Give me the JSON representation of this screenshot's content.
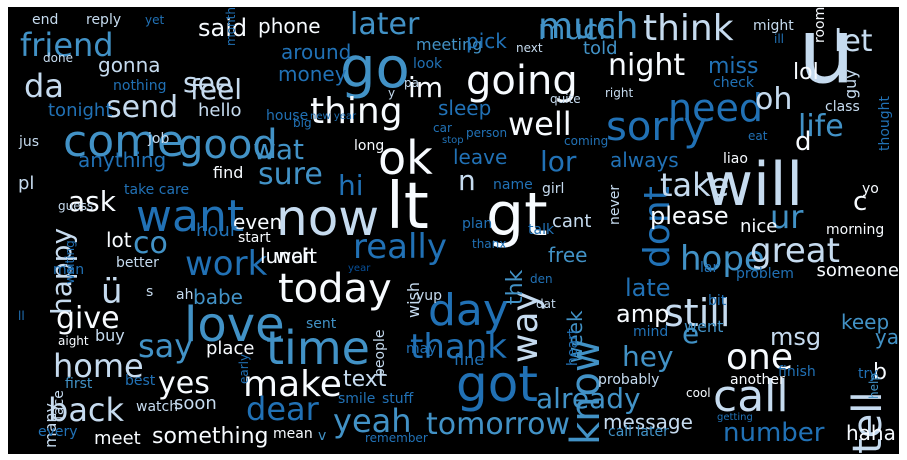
{
  "palette": {
    "background": "#000000",
    "frame": "#ffffff",
    "white": "#f7fbff",
    "pale_blue": "#c6dbef",
    "light_blue": "#9ecae1",
    "mid_blue": "#6baed6",
    "blue": "#4292c6",
    "deep_blue": "#2171b5",
    "navy": "#08519c",
    "dark_navy": "#08306b"
  },
  "words": [
    {
      "text": "lt",
      "color": "#f7fbff"
    },
    {
      "text": "ü",
      "color": "#c6dbef"
    },
    {
      "text": "gt",
      "color": "#f7fbff"
    },
    {
      "text": "u",
      "color": "#c6dbef"
    },
    {
      "text": "will",
      "color": "#c6dbef"
    },
    {
      "text": "now",
      "color": "#c6dbef"
    },
    {
      "text": "ok",
      "color": "#f7fbff"
    },
    {
      "text": "go",
      "color": "#4292c6"
    },
    {
      "text": "got",
      "color": "#2171b5"
    },
    {
      "text": "time",
      "color": "#4292c6"
    },
    {
      "text": "call",
      "color": "#c6dbef"
    },
    {
      "text": "know",
      "color": "#4292c6"
    },
    {
      "text": "going",
      "color": "#f7fbff"
    },
    {
      "text": "come",
      "color": "#4292c6"
    },
    {
      "text": "love",
      "color": "#4292c6"
    },
    {
      "text": "good",
      "color": "#4292c6"
    },
    {
      "text": "day",
      "color": "#2171b5"
    },
    {
      "text": "sorry",
      "color": "#2171b5"
    },
    {
      "text": "want",
      "color": "#2171b5"
    },
    {
      "text": "much",
      "color": "#4292c6"
    },
    {
      "text": "need",
      "color": "#2171b5"
    },
    {
      "text": "think",
      "color": "#c6dbef"
    },
    {
      "text": "still",
      "color": "#c6dbef"
    },
    {
      "text": "today",
      "color": "#f7fbff"
    },
    {
      "text": "make",
      "color": "#f7fbff"
    },
    {
      "text": "tell",
      "color": "#c6dbef"
    },
    {
      "text": "one",
      "color": "#f7fbff"
    },
    {
      "text": "dont",
      "color": "#2171b5"
    },
    {
      "text": "ur",
      "color": "#4292c6"
    },
    {
      "text": "home",
      "color": "#c6dbef"
    },
    {
      "text": "back",
      "color": "#c6dbef"
    },
    {
      "text": "thing",
      "color": "#f7fbff"
    },
    {
      "text": "really",
      "color": "#2171b5"
    },
    {
      "text": "work",
      "color": "#2171b5"
    },
    {
      "text": "way",
      "color": "#c6dbef"
    },
    {
      "text": "yeah",
      "color": "#4292c6"
    },
    {
      "text": "tomorrow",
      "color": "#4292c6"
    },
    {
      "text": "dear",
      "color": "#2171b5"
    },
    {
      "text": "say",
      "color": "#4292c6"
    },
    {
      "text": "hope",
      "color": "#4292c6"
    },
    {
      "text": "take",
      "color": "#c6dbef"
    },
    {
      "text": "great",
      "color": "#c6dbef"
    },
    {
      "text": "thank",
      "color": "#2171b5"
    },
    {
      "text": "already",
      "color": "#4292c6"
    },
    {
      "text": "hey",
      "color": "#4292c6"
    },
    {
      "text": "well",
      "color": "#f7fbff"
    },
    {
      "text": "happy",
      "color": "#c6dbef"
    },
    {
      "text": "give",
      "color": "#f7fbff"
    },
    {
      "text": "night",
      "color": "#f7fbff"
    },
    {
      "text": "sure",
      "color": "#4292c6"
    },
    {
      "text": "life",
      "color": "#4292c6"
    },
    {
      "text": "da",
      "color": "#c6dbef"
    },
    {
      "text": "see",
      "color": "#c6dbef"
    },
    {
      "text": "feel",
      "color": "#c6dbef"
    },
    {
      "text": "send",
      "color": "#c6dbef"
    },
    {
      "text": "friend",
      "color": "#4292c6"
    },
    {
      "text": "later",
      "color": "#4292c6"
    },
    {
      "text": "said",
      "color": "#f7fbff"
    },
    {
      "text": "im",
      "color": "#f7fbff"
    },
    {
      "text": "let",
      "color": "#c6dbef"
    },
    {
      "text": "oh",
      "color": "#c6dbef"
    },
    {
      "text": "yes",
      "color": "#f7fbff"
    },
    {
      "text": "please",
      "color": "#f7fbff"
    },
    {
      "text": "wat",
      "color": "#4292c6"
    },
    {
      "text": "lor",
      "color": "#2171b5"
    },
    {
      "text": "hi",
      "color": "#2171b5"
    },
    {
      "text": "n",
      "color": "#c6dbef"
    },
    {
      "text": "ask",
      "color": "#f7fbff"
    },
    {
      "text": "co",
      "color": "#4292c6"
    },
    {
      "text": "late",
      "color": "#2171b5"
    },
    {
      "text": "amp",
      "color": "#f7fbff"
    },
    {
      "text": "e",
      "color": "#4292c6"
    },
    {
      "text": "msg",
      "color": "#c6dbef"
    },
    {
      "text": "number",
      "color": "#2171b5"
    },
    {
      "text": "d",
      "color": "#f7fbff"
    },
    {
      "text": "c",
      "color": "#f7fbff"
    },
    {
      "text": "text",
      "color": "#c6dbef"
    },
    {
      "text": "something",
      "color": "#f7fbff"
    },
    {
      "text": "message",
      "color": "#c6dbef"
    },
    {
      "text": "haha",
      "color": "#f7fbff"
    },
    {
      "text": "keep",
      "color": "#4292c6"
    },
    {
      "text": "b",
      "color": "#f7fbff"
    },
    {
      "text": "ya",
      "color": "#4292c6"
    },
    {
      "text": "phone",
      "color": "#f7fbff"
    },
    {
      "text": "much",
      "color": "#4292c6"
    },
    {
      "text": "meeting",
      "color": "#4292c6"
    },
    {
      "text": "told",
      "color": "#4292c6"
    },
    {
      "text": "miss",
      "color": "#2171b5"
    },
    {
      "text": "lol",
      "color": "#f7fbff"
    },
    {
      "text": "guy",
      "color": "#c6dbef"
    },
    {
      "text": "sleep",
      "color": "#2171b5"
    },
    {
      "text": "leave",
      "color": "#2171b5"
    },
    {
      "text": "always",
      "color": "#2171b5"
    },
    {
      "text": "even",
      "color": "#f7fbff"
    },
    {
      "text": "lunch",
      "color": "#f7fbff"
    },
    {
      "text": "wait",
      "color": "#f7fbff"
    },
    {
      "text": "lot",
      "color": "#f7fbff"
    },
    {
      "text": "free",
      "color": "#4292c6"
    },
    {
      "text": "cant",
      "color": "#c6dbef"
    },
    {
      "text": "thk",
      "color": "#4292c6"
    },
    {
      "text": "week",
      "color": "#4292c6"
    },
    {
      "text": "babe",
      "color": "#4292c6"
    },
    {
      "text": "place",
      "color": "#f7fbff"
    },
    {
      "text": "soon",
      "color": "#c6dbef"
    },
    {
      "text": "meet",
      "color": "#f7fbff"
    },
    {
      "text": "buy",
      "color": "#c6dbef"
    },
    {
      "text": "pick",
      "color": "#2171b5"
    },
    {
      "text": "around",
      "color": "#2171b5"
    },
    {
      "text": "money",
      "color": "#2171b5"
    },
    {
      "text": "gonna",
      "color": "#c6dbef"
    },
    {
      "text": "hello",
      "color": "#c6dbef"
    },
    {
      "text": "tonight",
      "color": "#2171b5"
    },
    {
      "text": "anything",
      "color": "#2171b5"
    },
    {
      "text": "pl",
      "color": "#c6dbef"
    },
    {
      "text": "find",
      "color": "#f7fbff"
    },
    {
      "text": "hour",
      "color": "#2171b5"
    },
    {
      "text": "nice",
      "color": "#f7fbff"
    },
    {
      "text": "someone",
      "color": "#f7fbff"
    },
    {
      "text": "went",
      "color": "#4292c6"
    },
    {
      "text": "mind",
      "color": "#2171b5"
    },
    {
      "text": "wish",
      "color": "#c6dbef"
    },
    {
      "text": "yup",
      "color": "#c6dbef"
    },
    {
      "text": "sent",
      "color": "#4292c6"
    },
    {
      "text": "mean",
      "color": "#f7fbff"
    },
    {
      "text": "v",
      "color": "#4292c6"
    },
    {
      "text": "smile",
      "color": "#2171b5"
    },
    {
      "text": "stuff",
      "color": "#2171b5"
    },
    {
      "text": "may",
      "color": "#2171b5"
    },
    {
      "text": "fine",
      "color": "#2171b5"
    },
    {
      "text": "people",
      "color": "#c6dbef"
    },
    {
      "text": "heart",
      "color": "#2171b5"
    },
    {
      "text": "call later",
      "color": "#4292c6"
    },
    {
      "text": "probably",
      "color": "#c6dbef"
    },
    {
      "text": "another",
      "color": "#f7fbff"
    },
    {
      "text": "cool",
      "color": "#f7fbff"
    },
    {
      "text": "finish",
      "color": "#2171b5"
    },
    {
      "text": "try",
      "color": "#2171b5"
    },
    {
      "text": "help",
      "color": "#4292c6"
    },
    {
      "text": "early",
      "color": "#2171b5"
    },
    {
      "text": "first",
      "color": "#4292c6"
    },
    {
      "text": "watch",
      "color": "#c6dbef"
    },
    {
      "text": "best",
      "color": "#2171b5"
    },
    {
      "text": "many",
      "color": "#c6dbef"
    },
    {
      "text": "face",
      "color": "#c6dbef"
    },
    {
      "text": "every",
      "color": "#2171b5"
    },
    {
      "text": "aight",
      "color": "#f7fbff"
    },
    {
      "text": "ll",
      "color": "#2171b5"
    },
    {
      "text": "man",
      "color": "#2171b5"
    },
    {
      "text": "waiting",
      "color": "#2171b5"
    },
    {
      "text": "better",
      "color": "#c6dbef"
    },
    {
      "text": "ah",
      "color": "#c6dbef"
    },
    {
      "text": "s",
      "color": "#c6dbef"
    },
    {
      "text": "start",
      "color": "#f7fbff"
    },
    {
      "text": "take care",
      "color": "#2171b5"
    },
    {
      "text": "guess",
      "color": "#c6dbef"
    },
    {
      "text": "jus",
      "color": "#c6dbef"
    },
    {
      "text": "job",
      "color": "#c6dbef"
    },
    {
      "text": "long",
      "color": "#f7fbff"
    },
    {
      "text": "name",
      "color": "#2171b5"
    },
    {
      "text": "girl",
      "color": "#c6dbef"
    },
    {
      "text": "never",
      "color": "#c6dbef"
    },
    {
      "text": "coming",
      "color": "#2171b5"
    },
    {
      "text": "liao",
      "color": "#f7fbff"
    },
    {
      "text": "eat",
      "color": "#2171b5"
    },
    {
      "text": "yo",
      "color": "#f7fbff"
    },
    {
      "text": "morning",
      "color": "#f7fbff"
    },
    {
      "text": "talk",
      "color": "#2171b5"
    },
    {
      "text": "plan",
      "color": "#2171b5"
    },
    {
      "text": "thanx",
      "color": "#2171b5"
    },
    {
      "text": "lar",
      "color": "#2171b5"
    },
    {
      "text": "bit",
      "color": "#2171b5"
    },
    {
      "text": "problem",
      "color": "#2171b5"
    },
    {
      "text": "den",
      "color": "#2171b5"
    },
    {
      "text": "dat",
      "color": "#c6dbef"
    },
    {
      "text": "thought",
      "color": "#2171b5"
    },
    {
      "text": "class",
      "color": "#c6dbef"
    },
    {
      "text": "check",
      "color": "#2171b5"
    },
    {
      "text": "quite",
      "color": "#c6dbef"
    },
    {
      "text": "right",
      "color": "#c6dbef"
    },
    {
      "text": "next",
      "color": "#c6dbef"
    },
    {
      "text": "look",
      "color": "#2171b5"
    },
    {
      "text": "pa",
      "color": "#c6dbef"
    },
    {
      "text": "y",
      "color": "#c6dbef"
    },
    {
      "text": "month",
      "color": "#2171b5"
    },
    {
      "text": "nothing",
      "color": "#2171b5"
    },
    {
      "text": "house",
      "color": "#2171b5"
    },
    {
      "text": "big",
      "color": "#2171b5"
    },
    {
      "text": "new year",
      "color": "#2171b5"
    },
    {
      "text": "person",
      "color": "#2171b5"
    },
    {
      "text": "car",
      "color": "#2171b5"
    },
    {
      "text": "stop",
      "color": "#2171b5"
    },
    {
      "text": "end",
      "color": "#c6dbef"
    },
    {
      "text": "reply",
      "color": "#c6dbef"
    },
    {
      "text": "yet",
      "color": "#2171b5"
    },
    {
      "text": "done",
      "color": "#c6dbef"
    },
    {
      "text": "might",
      "color": "#c6dbef"
    },
    {
      "text": "ill",
      "color": "#2171b5"
    },
    {
      "text": "room",
      "color": "#f7fbff"
    },
    {
      "text": "remember",
      "color": "#2171b5"
    },
    {
      "text": "year",
      "color": "#08519c"
    },
    {
      "text": "getting",
      "color": "#2171b5"
    }
  ]
}
